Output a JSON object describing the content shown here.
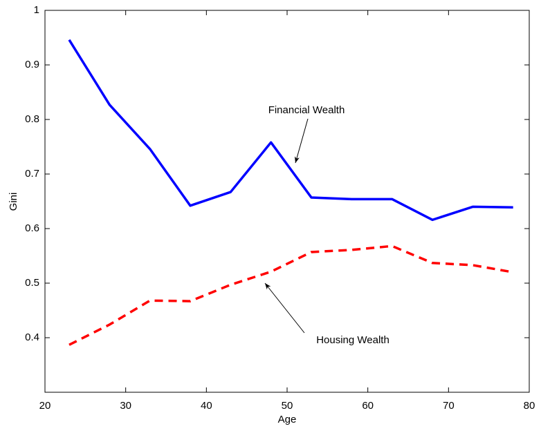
{
  "chart_data": {
    "type": "line",
    "x_label": "Age",
    "y_label": "Gini",
    "x": [
      23,
      28,
      33,
      38,
      43,
      48,
      53,
      58,
      63,
      68,
      73,
      78
    ],
    "series": [
      {
        "name": "Financial Wealth",
        "color": "#0000ff",
        "dash": false,
        "values": [
          0.946,
          0.827,
          0.746,
          0.642,
          0.667,
          0.758,
          0.657,
          0.654,
          0.654,
          0.616,
          0.64,
          0.639
        ]
      },
      {
        "name": "Housing Wealth",
        "color": "#ff0000",
        "dash": true,
        "values": [
          0.387,
          0.424,
          0.468,
          0.467,
          0.497,
          0.521,
          0.557,
          0.561,
          0.568,
          0.537,
          0.533,
          0.52
        ]
      }
    ],
    "xlim": [
      20,
      80
    ],
    "xticks": [
      20,
      30,
      40,
      50,
      60,
      70,
      80
    ],
    "ylim": [
      0.3,
      1
    ],
    "yticks": [
      0.4,
      0.5,
      0.6,
      0.7,
      0.8,
      0.9,
      1
    ],
    "grid": false
  }
}
